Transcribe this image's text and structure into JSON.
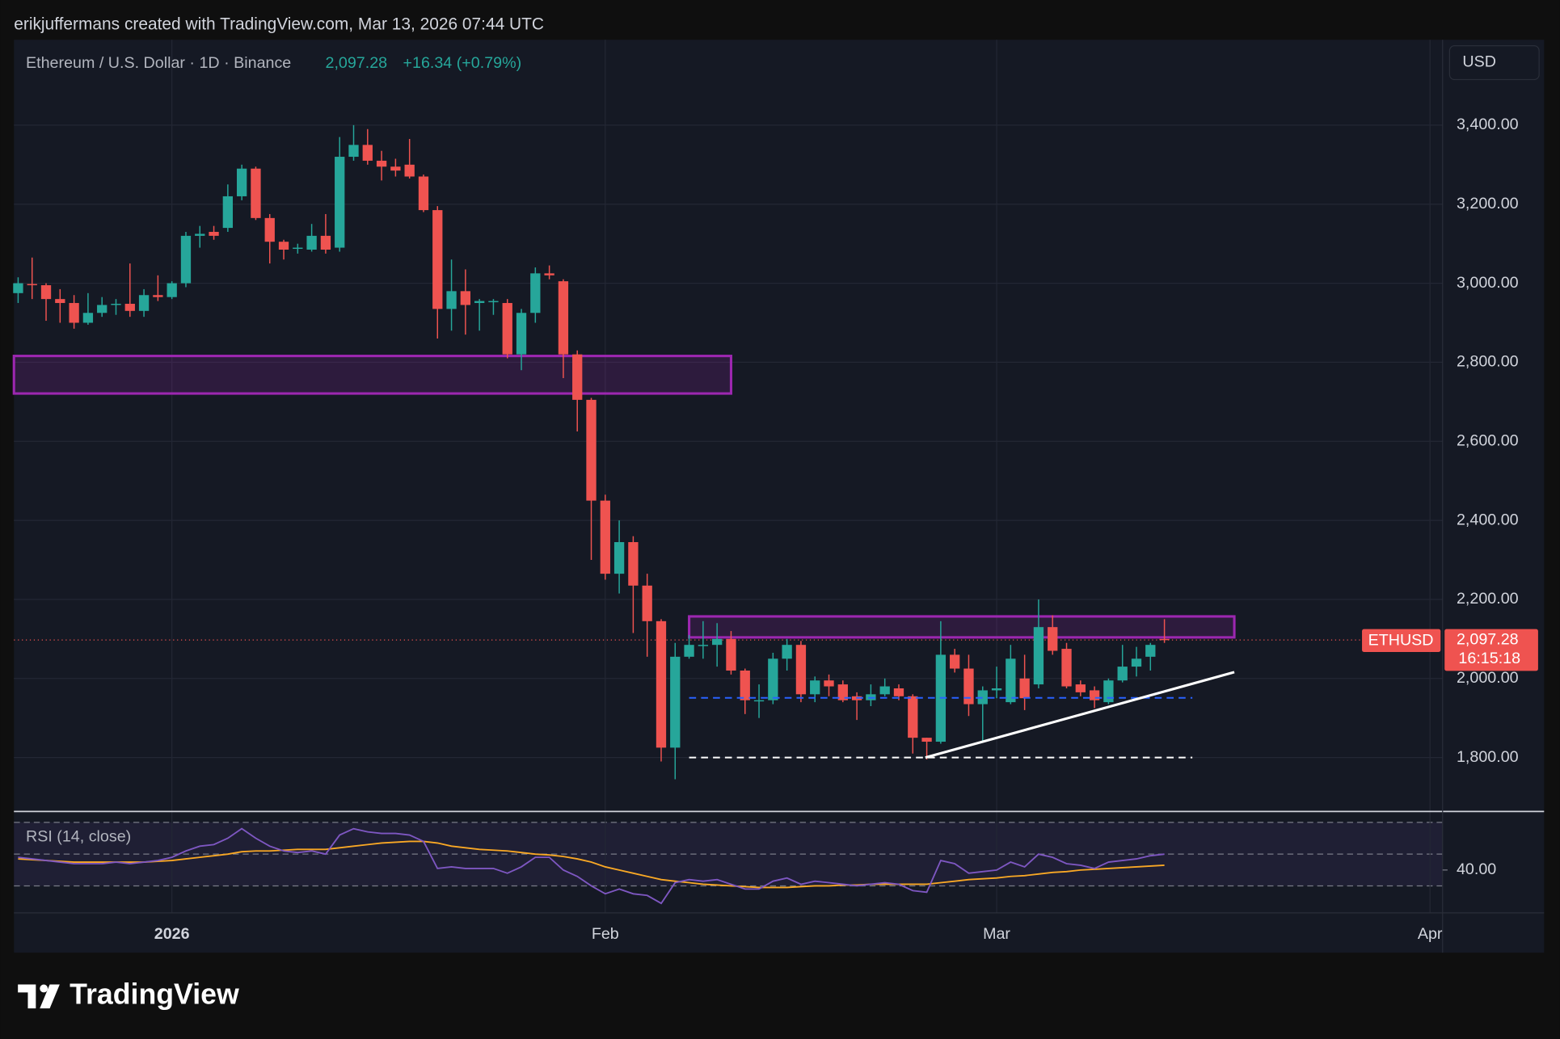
{
  "chart_data": {
    "type": "candlestick",
    "attribution": "erikjuffermans created with TradingView.com, Mar 13, 2026 07:44 UTC",
    "symbol_label": "Ethereum / U.S. Dollar · 1D · Binance",
    "last_price": 2097.28,
    "last_price_label": "2,097.28",
    "change": "+16.34 (+0.79%)",
    "currency": "USD",
    "ticker": "ETHUSD",
    "countdown": "16:15:18",
    "brand": "TradingView",
    "up_color": "#26a69a",
    "down_color": "#ef5350",
    "grid": true,
    "open": [
      2975,
      2998,
      2995,
      2960,
      2950,
      2900,
      2925,
      2945,
      2948,
      2930,
      2970,
      2965,
      3000,
      3120,
      3130,
      3140,
      3220,
      3290,
      3165,
      3105,
      3090,
      3085,
      3120,
      3090,
      3320,
      3350,
      3310,
      3295,
      3300,
      3270,
      3185,
      2935,
      2980,
      2950,
      2955,
      2950,
      2820,
      2925,
      3025,
      3005,
      2820,
      2705,
      2450,
      2265,
      2345,
      2235,
      2145,
      1825,
      2055,
      2085,
      2085,
      2100,
      2020,
      1945,
      1945,
      2050,
      2085,
      1960,
      1995,
      1985,
      1955,
      1945,
      1960,
      1975,
      1955,
      1850,
      1840,
      2060,
      2025,
      1935,
      1970,
      1940,
      2000,
      1985,
      2130,
      2075,
      1985,
      1970,
      1940,
      1995,
      2030,
      2055,
      2100
    ],
    "high": [
      3015,
      3065,
      3000,
      2985,
      2970,
      2975,
      2965,
      2960,
      3050,
      2985,
      3020,
      3005,
      3130,
      3145,
      3145,
      3250,
      3300,
      3295,
      3175,
      3110,
      3100,
      3150,
      3175,
      3370,
      3400,
      3390,
      3335,
      3315,
      3365,
      3275,
      3195,
      3060,
      3035,
      2960,
      2960,
      2960,
      2935,
      3040,
      3045,
      3010,
      2830,
      2710,
      2465,
      2400,
      2360,
      2265,
      2150,
      2090,
      2110,
      2145,
      2140,
      2120,
      2025,
      1985,
      2065,
      2100,
      2095,
      2005,
      2010,
      1995,
      1965,
      1985,
      2000,
      1985,
      1960,
      1850,
      2145,
      2075,
      2060,
      1980,
      2030,
      2085,
      2060,
      2200,
      2160,
      2090,
      1995,
      1980,
      2000,
      2085,
      2080,
      2090,
      2150
    ],
    "low": [
      2950,
      2960,
      2905,
      2900,
      2885,
      2895,
      2915,
      2920,
      2915,
      2915,
      2955,
      2960,
      2990,
      3090,
      3110,
      3130,
      3210,
      3160,
      3050,
      3060,
      3075,
      3080,
      3075,
      3080,
      3310,
      3300,
      3260,
      3270,
      3265,
      3180,
      2860,
      2880,
      2870,
      2880,
      2920,
      2810,
      2780,
      2900,
      3010,
      2760,
      2625,
      2300,
      2250,
      2215,
      2115,
      2055,
      1790,
      1745,
      2050,
      2050,
      2030,
      2010,
      1910,
      1900,
      1935,
      2020,
      1940,
      1940,
      1955,
      1940,
      1895,
      1930,
      1955,
      1945,
      1810,
      1795,
      1835,
      2015,
      1905,
      1840,
      1950,
      1935,
      1920,
      1975,
      2060,
      1975,
      1955,
      1925,
      1935,
      1990,
      2005,
      2020,
      2090
    ],
    "close": [
      3000,
      2995,
      2960,
      2950,
      2900,
      2925,
      2945,
      2948,
      2930,
      2970,
      2965,
      3000,
      3120,
      3125,
      3120,
      3220,
      3290,
      3165,
      3105,
      3085,
      3090,
      3120,
      3085,
      3320,
      3350,
      3310,
      3295,
      3285,
      3270,
      3185,
      2935,
      2980,
      2945,
      2955,
      2955,
      2820,
      2925,
      3025,
      3020,
      2820,
      2705,
      2450,
      2265,
      2345,
      2235,
      2145,
      1825,
      2055,
      2085,
      2085,
      2100,
      2020,
      1945,
      1945,
      2050,
      2085,
      1960,
      1995,
      1980,
      1945,
      1945,
      1960,
      1980,
      1955,
      1850,
      1840,
      2060,
      2025,
      1935,
      1970,
      1975,
      2050,
      1950,
      2130,
      2070,
      1980,
      1965,
      1945,
      1995,
      2030,
      2050,
      2085,
      2097.28
    ],
    "xlim": [
      -0.3,
      101.9
    ],
    "xticks": [
      {
        "value": 11,
        "label": "2026"
      },
      {
        "value": 42,
        "label": "Feb"
      },
      {
        "value": 70,
        "label": "Mar"
      },
      {
        "value": 101,
        "label": "Apr"
      }
    ],
    "ylim": [
      1666,
      3616
    ],
    "yticks": [
      {
        "value": 1800,
        "label": "1,800.00"
      },
      {
        "value": 2000,
        "label": "2,000.00"
      },
      {
        "value": 2200,
        "label": "2,200.00"
      },
      {
        "value": 2400,
        "label": "2,400.00"
      },
      {
        "value": 2600,
        "label": "2,600.00"
      },
      {
        "value": 2800,
        "label": "2,800.00"
      },
      {
        "value": 3000,
        "label": "3,000.00"
      },
      {
        "value": 3200,
        "label": "3,200.00"
      },
      {
        "value": 3400,
        "label": "3,400.00"
      }
    ],
    "zones": [
      {
        "xlim": [
          -0.3,
          51
        ],
        "ylim": [
          2721,
          2816
        ],
        "color": "#9c27b0"
      },
      {
        "xlim": [
          48,
          87
        ],
        "ylim": [
          2104,
          2157
        ],
        "color": "#9c27b0"
      }
    ],
    "trendline": {
      "x": [
        64.9,
        87
      ],
      "y": [
        1800,
        2016
      ],
      "color": "#ffffff"
    },
    "levels": [
      {
        "y": 1951,
        "xlim": [
          48,
          84
        ],
        "color": "#2962ff"
      },
      {
        "y": 1800,
        "xlim": [
          48,
          84
        ],
        "color": "#ffffff"
      }
    ],
    "rsi": {
      "label": "RSI (14, close)",
      "color": "#7e57c2",
      "ma_color": "#f9a825",
      "values": [
        48,
        47,
        46,
        45,
        44,
        44,
        44,
        45,
        44,
        45,
        46,
        48,
        52,
        55,
        56,
        60,
        66,
        60,
        55,
        52,
        51,
        52,
        50,
        62,
        66,
        64,
        63,
        63,
        62,
        58,
        41,
        42,
        41,
        41,
        41,
        38,
        42,
        48,
        48,
        40,
        36,
        30,
        25,
        28,
        25,
        24,
        19,
        32,
        34,
        33,
        34,
        31,
        28,
        28,
        33,
        35,
        31,
        33,
        32,
        31,
        30,
        31,
        32,
        31,
        27,
        26,
        46,
        44,
        38,
        39,
        40,
        45,
        42,
        50,
        48,
        44,
        43,
        41,
        45,
        46,
        47,
        49,
        50
      ],
      "ma": [
        47,
        46.5,
        46,
        45.5,
        45,
        45,
        45,
        45,
        45,
        45,
        45.5,
        46,
        47,
        48,
        49,
        50,
        51.5,
        52,
        52,
        52.5,
        53,
        53,
        53,
        54,
        55,
        56,
        57,
        57.5,
        58,
        58,
        57,
        55,
        54,
        53,
        52.5,
        52,
        51,
        50,
        49.5,
        48.5,
        47,
        45,
        42,
        40,
        38,
        36,
        34,
        33,
        32,
        31,
        30.5,
        30,
        29.5,
        29,
        29,
        29,
        29.5,
        30,
        30,
        30.5,
        30.5,
        31,
        31,
        31,
        31,
        31,
        32,
        33,
        34,
        34.5,
        35,
        36,
        36.5,
        37.5,
        38.5,
        39,
        40,
        40.5,
        41,
        41.5,
        42,
        42.5,
        43
      ],
      "ylim": [
        13,
        75.6
      ],
      "yticks": [
        {
          "value": 40,
          "label": "40.00"
        }
      ],
      "bands": [
        70,
        50,
        30
      ]
    }
  }
}
